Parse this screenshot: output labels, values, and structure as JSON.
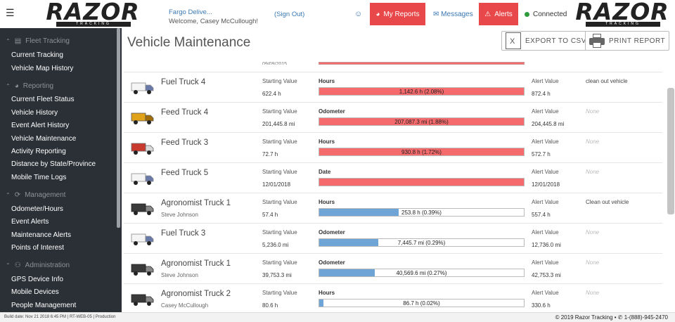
{
  "header": {
    "logo_text": "RAZOR",
    "logo_tagline": "TRACKING",
    "company": "Fargo Delive...",
    "welcome": "Welcome, Casey McCullough!",
    "signout": "(Sign Out)",
    "my_reports": "My Reports",
    "messages": "Messages",
    "alerts": "Alerts",
    "connected": "Connected"
  },
  "sidebar": {
    "sections": [
      {
        "label": "Fleet Tracking",
        "items": [
          "Current Tracking",
          "Vehicle Map History"
        ]
      },
      {
        "label": "Reporting",
        "items": [
          "Current Fleet Status",
          "Vehicle History",
          "Event Alert History",
          "Vehicle Maintenance",
          "Activity Reporting",
          "Distance by State/Province",
          "Mobile Time Logs"
        ]
      },
      {
        "label": "Management",
        "items": [
          "Odometer/Hours",
          "Event Alerts",
          "Maintenance Alerts",
          "Points of Interest"
        ]
      },
      {
        "label": "Administration",
        "items": [
          "GPS Device Info",
          "Mobile Devices",
          "People Management"
        ]
      }
    ]
  },
  "main": {
    "title": "Vehicle Maintenance",
    "export_csv": "EXPORT TO CSV",
    "print_report": "PRINT REPORT",
    "partial_value": "09/09/2015"
  },
  "labels": {
    "starting": "Starting Value",
    "alert": "Alert Value"
  },
  "rows": [
    {
      "name": "Fuel Truck 4",
      "driver": "",
      "start": "622.4 h",
      "meter": "Hours",
      "bar_text": "1,142.6 h (2.08%)",
      "fill": 1.0,
      "color": "#f56a6c",
      "alert": "872.4 h",
      "note": "clean out vehicle",
      "truck": "white"
    },
    {
      "name": "Feed Truck 4",
      "driver": "",
      "start": "201,445.8 mi",
      "meter": "Odometer",
      "bar_text": "207,087.3 mi (1.88%)",
      "fill": 1.0,
      "color": "#f56a6c",
      "alert": "204,445.8 mi",
      "note": "None",
      "truck": "yellow"
    },
    {
      "name": "Feed Truck 3",
      "driver": "",
      "start": "72.7 h",
      "meter": "Hours",
      "bar_text": "930.8 h (1.72%)",
      "fill": 1.0,
      "color": "#f56a6c",
      "alert": "572.7 h",
      "note": "None",
      "truck": "red"
    },
    {
      "name": "Feed Truck 5",
      "driver": "",
      "start": "12/01/2018",
      "meter": "Date",
      "bar_text": "",
      "fill": 1.0,
      "color": "#f56a6c",
      "alert": "12/01/2018",
      "note": "None",
      "truck": "white"
    },
    {
      "name": "Agronomist Truck 1",
      "driver": "Steve Johnson",
      "start": "57.4 h",
      "meter": "Hours",
      "bar_text": "253.8 h (0.39%)",
      "fill": 0.39,
      "color": "#6fa4d6",
      "alert": "557.4 h",
      "note": "Clean out vehicle",
      "truck": "black"
    },
    {
      "name": "Fuel Truck 3",
      "driver": "",
      "start": "5,236.0 mi",
      "meter": "Odometer",
      "bar_text": "7,445.7 mi (0.29%)",
      "fill": 0.29,
      "color": "#6fa4d6",
      "alert": "12,736.0 mi",
      "note": "None",
      "truck": "white"
    },
    {
      "name": "Agronomist Truck 1",
      "driver": "Steve Johnson",
      "start": "39,753.3 mi",
      "meter": "Odometer",
      "bar_text": "40,569.6 mi (0.27%)",
      "fill": 0.27,
      "color": "#6fa4d6",
      "alert": "42,753.3 mi",
      "note": "None",
      "truck": "black"
    },
    {
      "name": "Agronomist Truck 2",
      "driver": "Casey McCullough",
      "start": "80.6 h",
      "meter": "Hours",
      "bar_text": "86.7 h (0.02%)",
      "fill": 0.02,
      "color": "#6fa4d6",
      "alert": "330.6 h",
      "note": "None",
      "truck": "black"
    }
  ],
  "footer": {
    "build": "Build date: Nov 21 2018 6:45 PM | RT-WEB-05 | Production",
    "copyright": "© 2019 Razor Tracking • ",
    "phone": "1-(888)-945-2470"
  }
}
